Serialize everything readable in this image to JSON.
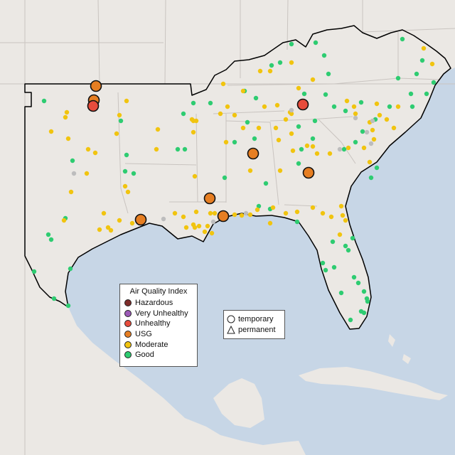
{
  "legend": {
    "title": "Air Quality Index",
    "categories": [
      {
        "label": "Hazardous",
        "color": "#7e2c2a"
      },
      {
        "label": "Very Unhealthy",
        "color": "#9b59b6"
      },
      {
        "label": "Unhealthy",
        "color": "#e74c3c"
      },
      {
        "label": "USG",
        "color": "#e67e22"
      },
      {
        "label": "Moderate",
        "color": "#f1c40f"
      },
      {
        "label": "Good",
        "color": "#2ecc71"
      }
    ]
  },
  "monitor_legend": {
    "items": [
      {
        "label": "temporary",
        "icon": "circle-outline-icon"
      },
      {
        "label": "permanent",
        "icon": "triangle-outline-icon"
      }
    ]
  },
  "colors": {
    "land": "#ebe8e4",
    "water": "#c7d6e6",
    "border": "#c9c4c0",
    "region_outline": "#000000",
    "no_data": "#bdbdbd"
  }
}
